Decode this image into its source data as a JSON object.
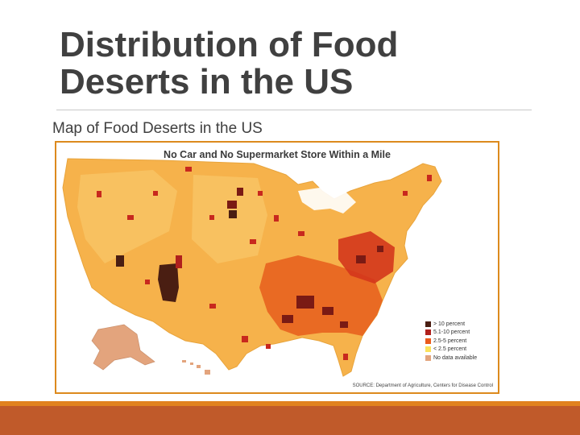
{
  "slide": {
    "title_line1": "Distribution of Food",
    "title_line2": "Deserts in  the US",
    "subtitle": "Map of Food Deserts in the US"
  },
  "map": {
    "title": "No Car and No Supermarket Store Within a Mile",
    "legend": [
      {
        "label": "> 10 percent",
        "color": "#4a1e12"
      },
      {
        "label": "5.1-10 percent",
        "color": "#b0201d"
      },
      {
        "label": "2.5-5 percent",
        "color": "#ea5a1c"
      },
      {
        "label": "< 2.5 percent",
        "color": "#fbe25c"
      },
      {
        "label": "No data available",
        "color": "#e3a47d"
      }
    ],
    "source": "SOURCE: Department of Agriculture, Centers for Disease Control"
  },
  "colors": {
    "accent": "#e1821f",
    "footer": "#c05a2a",
    "frame": "#dc8a1d",
    "land": "#f6b24b"
  }
}
